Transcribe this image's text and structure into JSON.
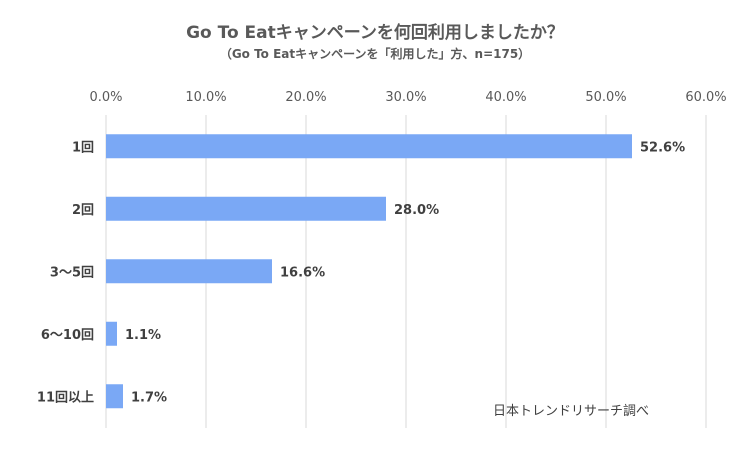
{
  "chart_data": {
    "type": "bar",
    "orientation": "horizontal",
    "title": "Go To Eatキャンペーンを何回利用しましたか？",
    "subtitle": "（Go To Eatキャンペーンを「利用した」方、n=175）",
    "categories": [
      "1回",
      "2回",
      "3〜5回",
      "6〜10回",
      "11回以上"
    ],
    "values": [
      52.6,
      28.0,
      16.6,
      1.1,
      1.7
    ],
    "data_labels": [
      "52.6%",
      "28.0%",
      "16.6%",
      "1.1%",
      "1.7%"
    ],
    "xlim": [
      0,
      60
    ],
    "x_ticks": [
      0,
      10,
      20,
      30,
      40,
      50,
      60
    ],
    "x_tick_labels": [
      "0.0%",
      "10.0%",
      "20.0%",
      "30.0%",
      "40.0%",
      "50.0%",
      "60.0%"
    ],
    "xaxis_position": "top",
    "grid": true,
    "bar_color": "#7aa8f5",
    "source": "日本トレンドリサーチ調べ"
  }
}
